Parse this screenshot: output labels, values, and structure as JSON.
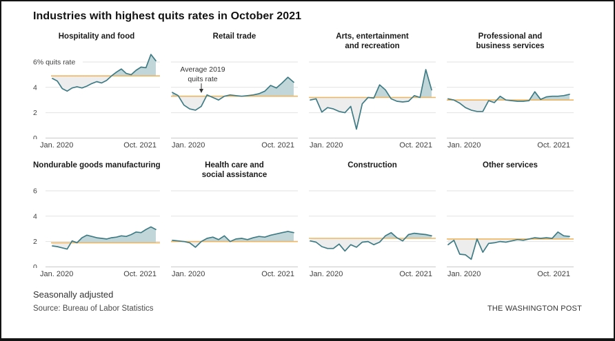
{
  "header": {
    "title": "Industries with highest quits rates in October 2021"
  },
  "footer": {
    "note": "Seasonally adjusted",
    "source": "Source: Bureau of Labor Statistics",
    "credit": "THE WASHINGTON POST"
  },
  "chart_data": {
    "type": "area",
    "title": "Industries with highest quits rates in October 2021",
    "unit": "% quits rate (monthly)",
    "x_start_label": "Jan. 2020",
    "x_end_label": "Oct. 2021",
    "ylim": [
      0,
      6
    ],
    "gridline_values": [
      6,
      4,
      2,
      0
    ],
    "grid": "horizontal only",
    "reference_line_label": [
      "Average 2019",
      "quits rate"
    ],
    "colors": {
      "line": "#3e7b85",
      "fill_above_avg": "#c0d6d8",
      "fill_below_avg": "#ededed",
      "avg_line": "#f0b55e",
      "gridline": "#e2e2e2",
      "zero_line": "#c6c6c6"
    },
    "panels": [
      {
        "title_lines": [
          "Hospitality and food"
        ],
        "avg_2019_rate": 4.9,
        "y_tick_labels": [
          "6% quits rate",
          "4",
          "2",
          "0"
        ],
        "values": [
          4.7,
          4.5,
          3.9,
          3.7,
          3.95,
          4.05,
          3.95,
          4.1,
          4.3,
          4.45,
          4.35,
          4.55,
          4.9,
          5.2,
          5.45,
          5.1,
          5.0,
          5.35,
          5.6,
          5.55,
          6.6,
          6.1
        ]
      },
      {
        "title_lines": [
          "Retail trade"
        ],
        "avg_2019_rate": 3.3,
        "has_annotation": true,
        "values": [
          3.6,
          3.35,
          2.6,
          2.3,
          2.2,
          2.5,
          3.4,
          3.2,
          3.0,
          3.3,
          3.4,
          3.35,
          3.3,
          3.35,
          3.4,
          3.5,
          3.7,
          4.15,
          3.95,
          4.35,
          4.8,
          4.4
        ]
      },
      {
        "title_lines": [
          "Arts, entertainment",
          "and recreation"
        ],
        "avg_2019_rate": 3.2,
        "values": [
          3.0,
          3.1,
          2.05,
          2.4,
          2.3,
          2.1,
          2.0,
          2.5,
          0.7,
          2.7,
          3.2,
          3.15,
          4.2,
          3.8,
          3.1,
          2.9,
          2.85,
          2.9,
          3.35,
          3.2,
          5.4,
          3.8
        ]
      },
      {
        "title_lines": [
          "Professional and",
          "business services"
        ],
        "avg_2019_rate": 3.0,
        "values": [
          3.1,
          3.0,
          2.75,
          2.4,
          2.2,
          2.1,
          2.1,
          2.95,
          2.8,
          3.3,
          3.0,
          2.95,
          2.9,
          2.9,
          2.95,
          3.65,
          3.05,
          3.25,
          3.3,
          3.3,
          3.35,
          3.45
        ]
      },
      {
        "title_lines": [
          "Nondurable goods manufacturing"
        ],
        "avg_2019_rate": 1.9,
        "y_tick_labels": [
          "6",
          "4",
          "2",
          "0"
        ],
        "values": [
          1.65,
          1.6,
          1.5,
          1.4,
          2.05,
          1.9,
          2.3,
          2.5,
          2.4,
          2.3,
          2.25,
          2.2,
          2.3,
          2.35,
          2.45,
          2.4,
          2.55,
          2.75,
          2.7,
          2.95,
          3.15,
          2.95
        ]
      },
      {
        "title_lines": [
          "Health care and",
          "social assistance"
        ],
        "avg_2019_rate": 2.0,
        "values": [
          2.1,
          2.05,
          2.0,
          1.9,
          1.55,
          2.0,
          2.25,
          2.35,
          2.15,
          2.45,
          2.0,
          2.2,
          2.25,
          2.15,
          2.3,
          2.4,
          2.35,
          2.5,
          2.6,
          2.7,
          2.8,
          2.7
        ]
      },
      {
        "title_lines": [
          "Construction"
        ],
        "avg_2019_rate": 2.25,
        "values": [
          2.05,
          1.95,
          1.6,
          1.45,
          1.45,
          1.8,
          1.25,
          1.75,
          1.55,
          1.95,
          2.0,
          1.75,
          1.95,
          2.45,
          2.7,
          2.3,
          2.05,
          2.55,
          2.65,
          2.6,
          2.55,
          2.45
        ]
      },
      {
        "title_lines": [
          "Other services"
        ],
        "avg_2019_rate": 2.2,
        "values": [
          1.75,
          2.1,
          1.0,
          0.95,
          0.6,
          2.2,
          1.15,
          1.85,
          1.9,
          2.0,
          1.95,
          2.05,
          2.15,
          2.1,
          2.2,
          2.3,
          2.25,
          2.3,
          2.25,
          2.75,
          2.45,
          2.4
        ]
      }
    ]
  }
}
